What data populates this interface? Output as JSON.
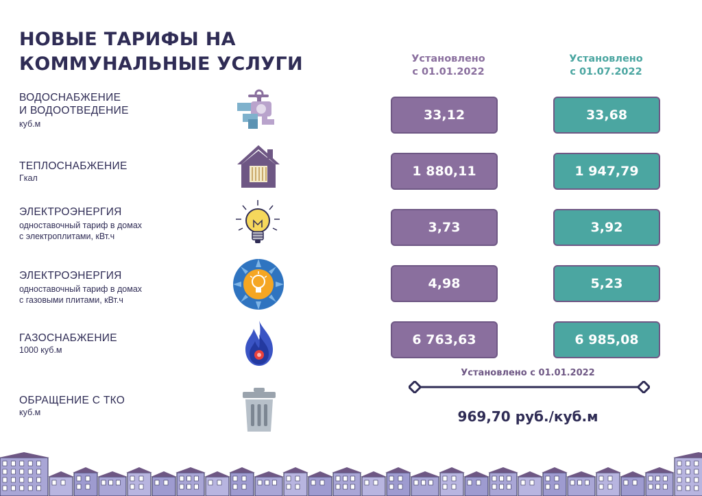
{
  "title": {
    "line1": "НОВЫЕ ТАРИФЫ НА",
    "line2": "КОММУНАЛЬНЫЕ УСЛУГИ"
  },
  "columns": [
    {
      "line1": "Установлено",
      "line2": "с 01.01.2022"
    },
    {
      "line1": "Установлено",
      "line2": "с 01.07.2022"
    }
  ],
  "rows": [
    {
      "name1": "ВОДОСНАБЖЕНИЕ",
      "name2": "И ВОДООТВЕДЕНИЕ",
      "unit1": "куб.м",
      "icon": "water-tap-icon",
      "v1": "33,12",
      "v2": "33,68"
    },
    {
      "name1": "ТЕПЛОСНАБЖЕНИЕ",
      "unit1": "Гкал",
      "icon": "house-radiator-icon",
      "v1": "1 880,11",
      "v2": "1 947,79"
    },
    {
      "name1": "ЭЛЕКТРОЭНЕРГИЯ",
      "unit1": "одноставочный тариф в домах",
      "unit2": "с электроплитами, кВт.ч",
      "icon": "light-bulb-icon",
      "v1": "3,73",
      "v2": "3,92"
    },
    {
      "name1": "ЭЛЕКТРОЭНЕРГИЯ",
      "unit1": "одноставочный тариф в домах",
      "unit2": "с газовыми плитами, кВт.ч",
      "icon": "gas-burner-bulb-icon",
      "v1": "4,98",
      "v2": "5,23"
    },
    {
      "name1": "ГАЗОСНАБЖЕНИЕ",
      "unit1": "1000 куб.м",
      "icon": "gas-flame-icon",
      "v1": "6 763,63",
      "v2": "6 985,08"
    }
  ],
  "tko": {
    "name": "ОБРАЩЕНИЕ С ТКО",
    "unit": "куб.м",
    "icon": "trash-can-icon",
    "heading": "Установлено с 01.01.2022",
    "value": "969,70 руб./куб.м"
  },
  "colors": {
    "title": "#2f2c55",
    "purple": "#8a6f9e",
    "teal": "#4ba6a1",
    "border": "#6e5784"
  },
  "decor": {
    "footer": "town-skyline-illustration"
  }
}
